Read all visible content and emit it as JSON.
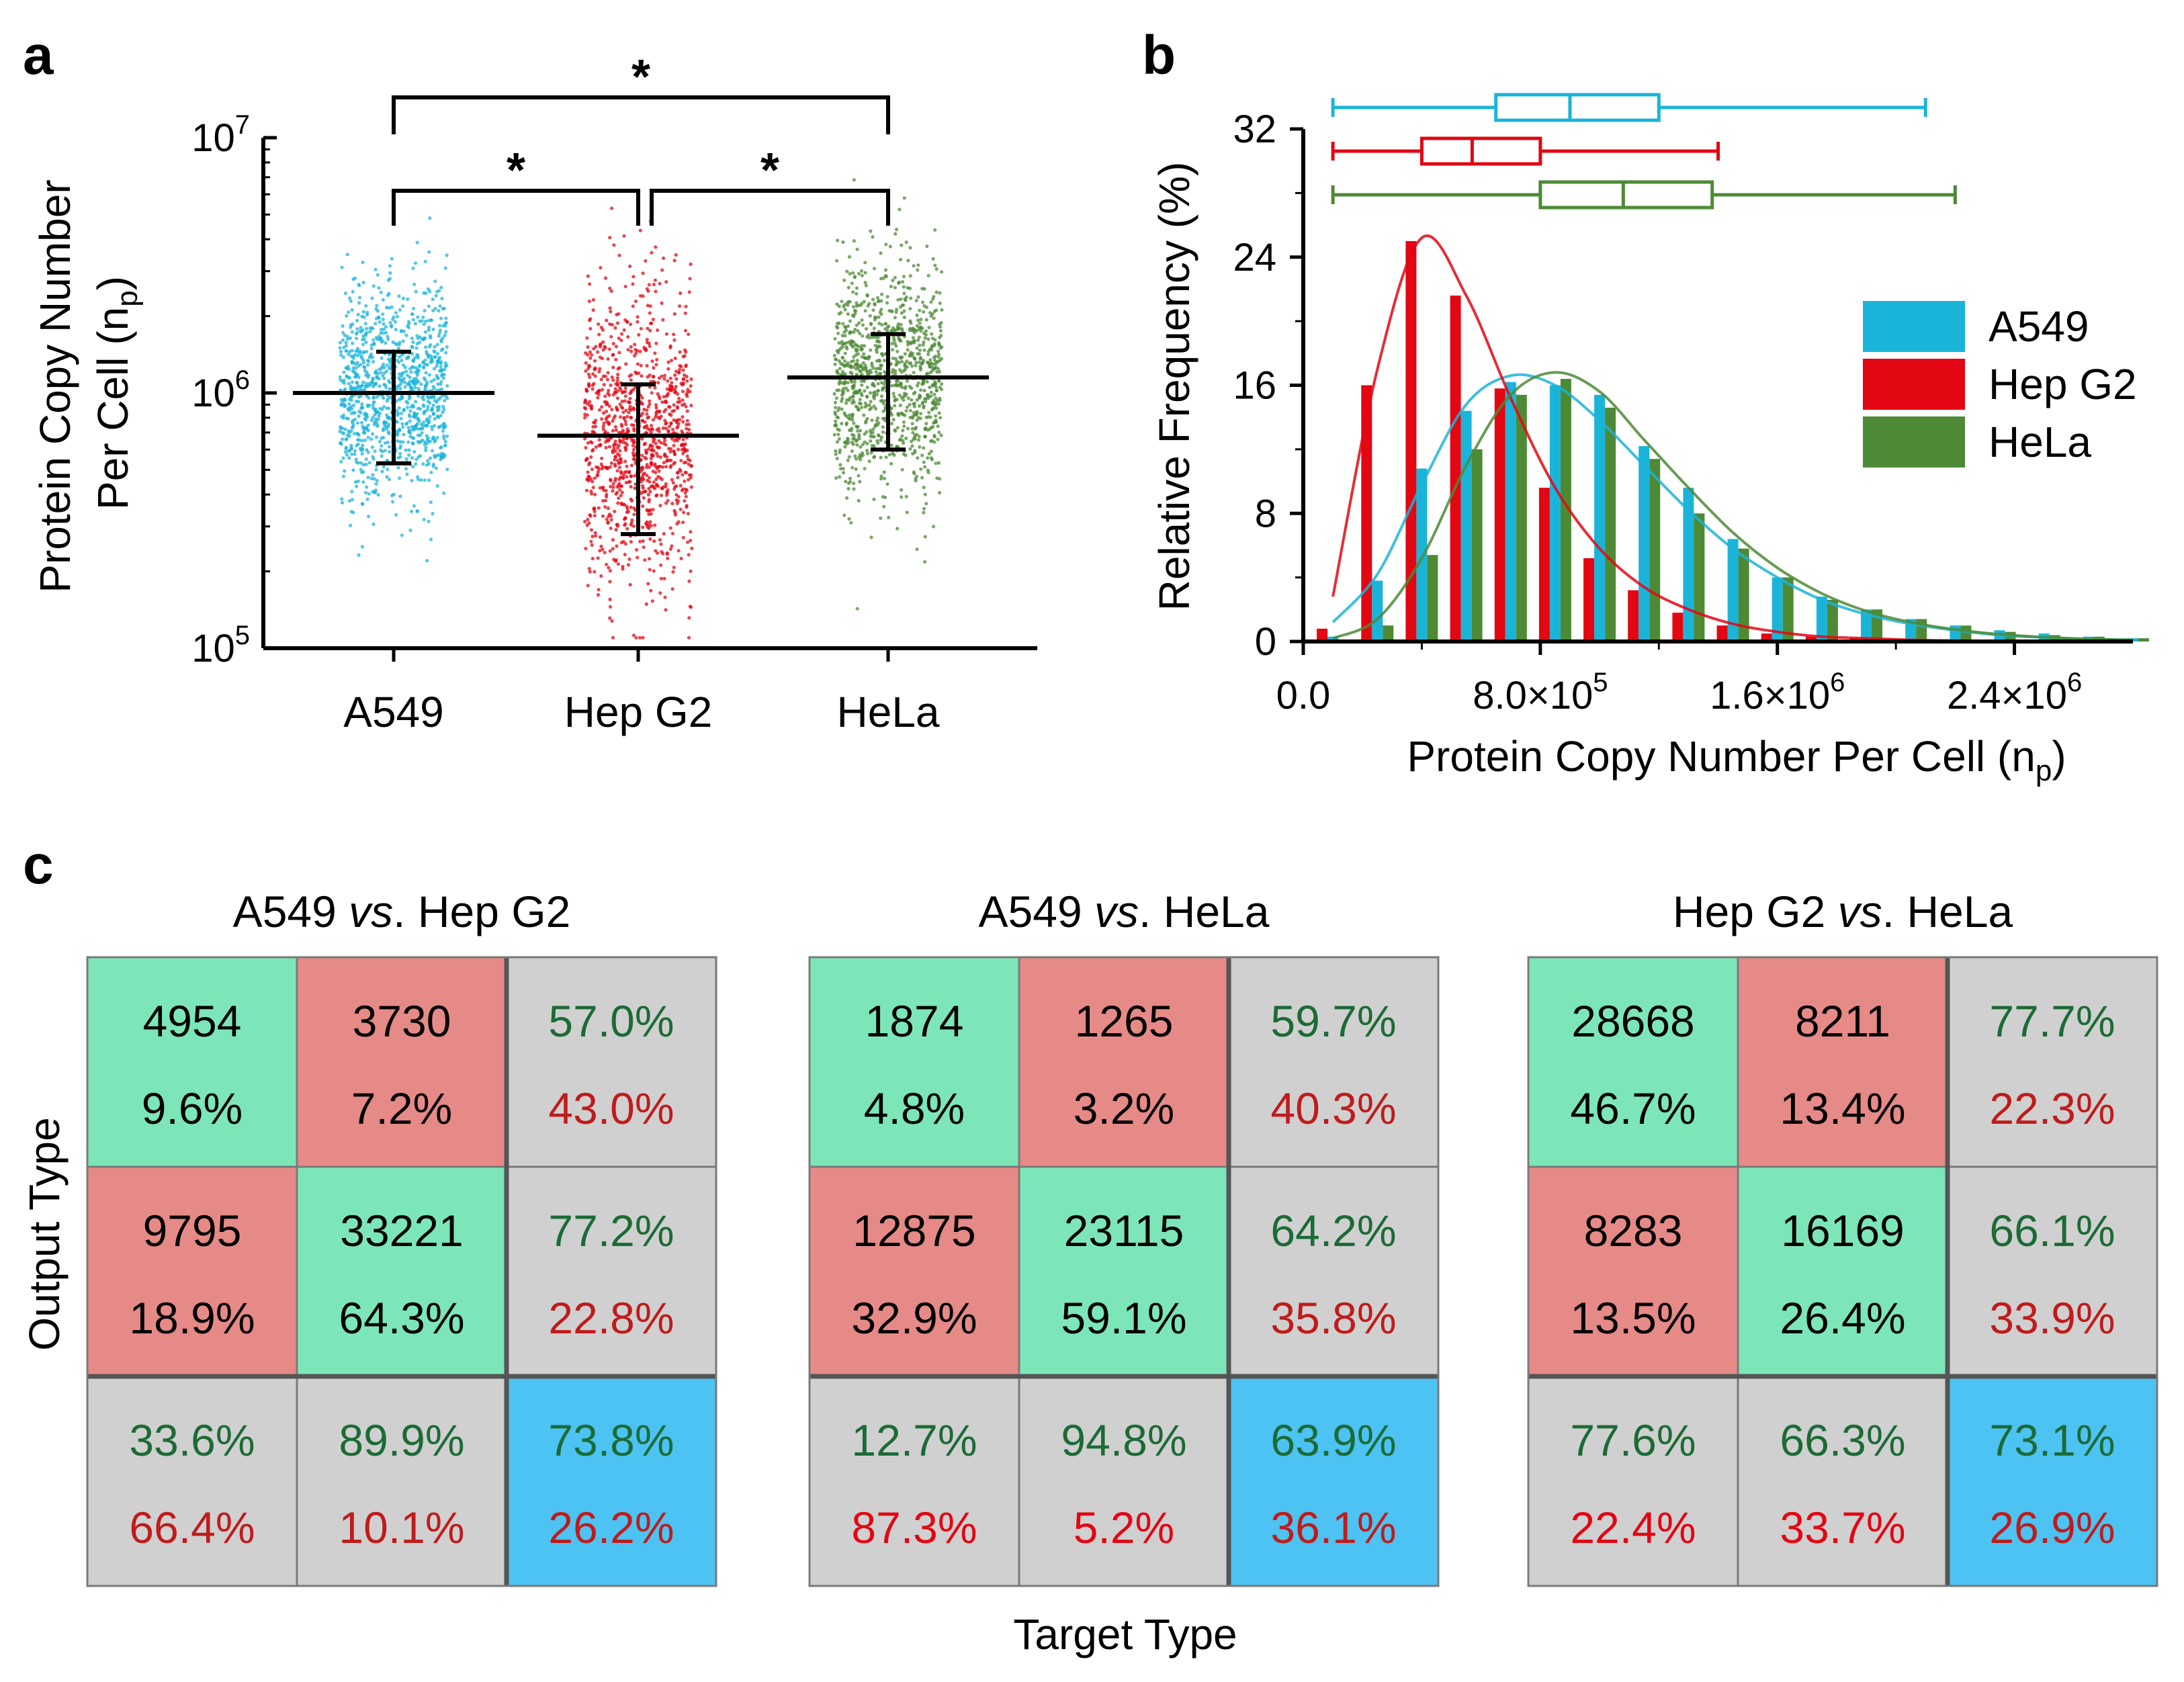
{
  "panel_labels": {
    "a": "a",
    "b": "b",
    "c": "c"
  },
  "colors": {
    "a549": "#1BB4D9",
    "hepg2": "#E30613",
    "hela": "#4E8A35",
    "cm_green": "#7DE6B9",
    "cm_red": "#E68A87",
    "cm_gray": "#D0D0D0",
    "cm_blue": "#4CC3F2",
    "text_green": "#1B6B35",
    "text_red": "#C01B1B"
  },
  "chart_data": [
    {
      "type": "scatter",
      "panel": "a",
      "ylabel_line1": "Protein Copy Number",
      "ylabel_line2_main": "Per Cell (n",
      "ylabel_line2_sub": "p",
      "ylabel_line2_end": ")",
      "yscale": "log",
      "ylim": [
        100000,
        10000000
      ],
      "yticks": [
        {
          "value": 100000,
          "base": "10",
          "exp": "5"
        },
        {
          "value": 1000000,
          "base": "10",
          "exp": "6"
        },
        {
          "value": 10000000,
          "base": "10",
          "exp": "7"
        }
      ],
      "categories": [
        "A549",
        "Hep G2",
        "HeLa"
      ],
      "series": [
        {
          "name": "A549",
          "mean": 1000000,
          "lower": 530000,
          "upper": 1450000,
          "color_key": "a549"
        },
        {
          "name": "Hep G2",
          "mean": 680000,
          "lower": 280000,
          "upper": 1080000,
          "color_key": "hepg2"
        },
        {
          "name": "HeLa",
          "mean": 1150000,
          "lower": 600000,
          "upper": 1700000,
          "color_key": "hela"
        }
      ],
      "significance": [
        {
          "from": "A549",
          "to": "Hep G2",
          "label": "*"
        },
        {
          "from": "Hep G2",
          "to": "HeLa",
          "label": "*"
        },
        {
          "from": "A549",
          "to": "HeLa",
          "label": "*"
        }
      ]
    },
    {
      "type": "bar",
      "panel": "b",
      "xlabel_main": "Protein Copy Number Per Cell (n",
      "xlabel_sub": "p",
      "xlabel_end": ")",
      "ylabel": "Relative Frequency (%)",
      "xlim": [
        0,
        2800000
      ],
      "ylim": [
        0,
        32
      ],
      "xticks": [
        {
          "value": 0,
          "label": "0.0",
          "exp": ""
        },
        {
          "value": 800000,
          "label": "8.0×10",
          "exp": "5"
        },
        {
          "value": 1600000,
          "label": "1.6×10",
          "exp": "6"
        },
        {
          "value": 2400000,
          "label": "2.4×10",
          "exp": "6"
        }
      ],
      "yticks": [
        0,
        8,
        16,
        24,
        32
      ],
      "bin_centers": [
        100000,
        250000,
        400000,
        550000,
        700000,
        850000,
        1000000,
        1150000,
        1300000,
        1450000,
        1600000,
        1750000,
        1900000,
        2050000,
        2200000,
        2350000,
        2500000,
        2650000,
        2800000
      ],
      "series": [
        {
          "name": "A549",
          "color_key": "a549",
          "values": [
            0.3,
            3.8,
            10.8,
            14.4,
            16.2,
            16.0,
            15.4,
            12.2,
            9.6,
            6.4,
            4.0,
            2.8,
            2.0,
            1.4,
            1.0,
            0.7,
            0.5,
            0.3,
            0.2
          ],
          "fit": [
            1.2,
            4.2,
            9.8,
            14.8,
            16.6,
            16.0,
            13.8,
            11.0,
            8.2,
            5.8,
            4.0,
            2.6,
            1.7,
            1.1,
            0.7,
            0.4,
            0.25,
            0.15,
            0.1
          ],
          "box": {
            "whisker_low": 100000,
            "q1": 650000,
            "median": 900000,
            "q3": 1200000,
            "whisker_high": 2100000
          }
        },
        {
          "name": "Hep G2",
          "color_key": "hepg2",
          "values": [
            0.8,
            16.0,
            25.0,
            21.6,
            15.8,
            9.6,
            5.2,
            3.2,
            1.8,
            1.0,
            0.5,
            0.3,
            0.2,
            0.1,
            0.1,
            0.0,
            0.0,
            0.0,
            0.0
          ],
          "fit": [
            2.8,
            17.0,
            25.2,
            21.6,
            15.2,
            9.6,
            5.8,
            3.4,
            2.0,
            1.1,
            0.6,
            0.3,
            0.2,
            0.1,
            0.05,
            0.03,
            0.02,
            0.01,
            0.0
          ],
          "box": {
            "whisker_low": 100000,
            "q1": 400000,
            "median": 570000,
            "q3": 800000,
            "whisker_high": 1400000
          }
        },
        {
          "name": "HeLa",
          "color_key": "hela",
          "values": [
            0.0,
            1.0,
            5.4,
            12.0,
            15.4,
            16.4,
            14.6,
            11.4,
            8.0,
            5.8,
            4.0,
            2.6,
            2.0,
            1.4,
            1.0,
            0.6,
            0.4,
            0.3,
            0.2
          ],
          "fit": [
            0.2,
            1.4,
            5.2,
            11.0,
            15.4,
            16.8,
            15.6,
            12.6,
            9.6,
            6.8,
            4.6,
            3.0,
            1.9,
            1.2,
            0.75,
            0.45,
            0.27,
            0.16,
            0.1
          ],
          "box": {
            "whisker_low": 100000,
            "q1": 800000,
            "median": 1080000,
            "q3": 1380000,
            "whisker_high": 2200000
          }
        }
      ],
      "legend": [
        "A549",
        "Hep G2",
        "HeLa"
      ],
      "legend_position": "right"
    }
  ],
  "confusion": {
    "xlabel": "Target Type",
    "ylabel": "Output Type",
    "title_vs": "vs",
    "title_dot": ".",
    "matrices": [
      {
        "title_a": "A549",
        "title_b": "Hep G2",
        "cells": [
          [
            {
              "l1": "4954",
              "l2": "9.6%",
              "kind": "green"
            },
            {
              "l1": "3730",
              "l2": "7.2%",
              "kind": "red"
            },
            {
              "l1": "57.0%",
              "l2": "43.0%",
              "kind": "gray"
            }
          ],
          [
            {
              "l1": "9795",
              "l2": "18.9%",
              "kind": "red"
            },
            {
              "l1": "33221",
              "l2": "64.3%",
              "kind": "green"
            },
            {
              "l1": "77.2%",
              "l2": "22.8%",
              "kind": "gray"
            }
          ],
          [
            {
              "l1": "33.6%",
              "l2": "66.4%",
              "kind": "gray"
            },
            {
              "l1": "89.9%",
              "l2": "10.1%",
              "kind": "gray"
            },
            {
              "l1": "73.8%",
              "l2": "26.2%",
              "kind": "blue"
            }
          ]
        ]
      },
      {
        "title_a": "A549",
        "title_b": "HeLa",
        "cells": [
          [
            {
              "l1": "1874",
              "l2": "4.8%",
              "kind": "green"
            },
            {
              "l1": "1265",
              "l2": "3.2%",
              "kind": "red"
            },
            {
              "l1": "59.7%",
              "l2": "40.3%",
              "kind": "gray"
            }
          ],
          [
            {
              "l1": "12875",
              "l2": "32.9%",
              "kind": "red"
            },
            {
              "l1": "23115",
              "l2": "59.1%",
              "kind": "green"
            },
            {
              "l1": "64.2%",
              "l2": "35.8%",
              "kind": "gray"
            }
          ],
          [
            {
              "l1": "12.7%",
              "l2": "87.3%",
              "kind": "gray"
            },
            {
              "l1": "94.8%",
              "l2": "5.2%",
              "kind": "gray"
            },
            {
              "l1": "63.9%",
              "l2": "36.1%",
              "kind": "blue"
            }
          ]
        ]
      },
      {
        "title_a": "Hep G2",
        "title_b": "HeLa",
        "cells": [
          [
            {
              "l1": "28668",
              "l2": "46.7%",
              "kind": "green"
            },
            {
              "l1": "8211",
              "l2": "13.4%",
              "kind": "red"
            },
            {
              "l1": "77.7%",
              "l2": "22.3%",
              "kind": "gray"
            }
          ],
          [
            {
              "l1": "8283",
              "l2": "13.5%",
              "kind": "red"
            },
            {
              "l1": "16169",
              "l2": "26.4%",
              "kind": "green"
            },
            {
              "l1": "66.1%",
              "l2": "33.9%",
              "kind": "gray"
            }
          ],
          [
            {
              "l1": "77.6%",
              "l2": "22.4%",
              "kind": "gray"
            },
            {
              "l1": "66.3%",
              "l2": "33.7%",
              "kind": "gray"
            },
            {
              "l1": "73.1%",
              "l2": "26.9%",
              "kind": "blue"
            }
          ]
        ]
      }
    ]
  }
}
